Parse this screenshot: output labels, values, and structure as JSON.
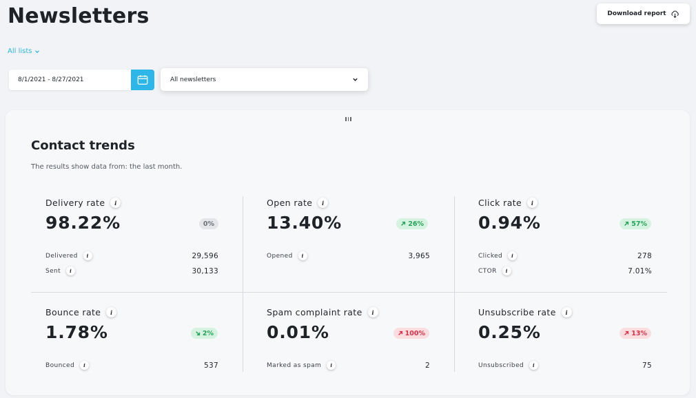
{
  "page": {
    "title": "Newsletters",
    "download_label": "Download report",
    "lists_label": "All lists"
  },
  "filters": {
    "date_range": "8/1/2021 - 8/27/2021",
    "newsletter_select": "All newsletters"
  },
  "section": {
    "title": "Contact trends",
    "subtitle": "The results show data from: the last month."
  },
  "colors": {
    "accent": "#2fb6e8",
    "positive": "#27a35a",
    "negative": "#d9334a",
    "neutral": "#6d7278"
  },
  "metrics": [
    {
      "label": "Delivery rate",
      "value": "98.22%",
      "badge": {
        "text": "0%",
        "trend": "neutral"
      },
      "rows": [
        {
          "label": "Delivered",
          "value": "29,596"
        },
        {
          "label": "Sent",
          "value": "30,133"
        }
      ]
    },
    {
      "label": "Open rate",
      "value": "13.40%",
      "badge": {
        "text": "26%",
        "trend": "up-good"
      },
      "rows": [
        {
          "label": "Opened",
          "value": "3,965"
        }
      ]
    },
    {
      "label": "Click rate",
      "value": "0.94%",
      "badge": {
        "text": "57%",
        "trend": "up-good"
      },
      "rows": [
        {
          "label": "Clicked",
          "value": "278"
        },
        {
          "label": "CTOR",
          "value": "7.01%"
        }
      ]
    },
    {
      "label": "Bounce rate",
      "value": "1.78%",
      "badge": {
        "text": "2%",
        "trend": "down-good"
      },
      "rows": [
        {
          "label": "Bounced",
          "value": "537"
        }
      ]
    },
    {
      "label": "Spam complaint rate",
      "value": "0.01%",
      "badge": {
        "text": "100%",
        "trend": "up-bad"
      },
      "rows": [
        {
          "label": "Marked as spam",
          "value": "2"
        }
      ]
    },
    {
      "label": "Unsubscribe rate",
      "value": "0.25%",
      "badge": {
        "text": "13%",
        "trend": "up-bad"
      },
      "rows": [
        {
          "label": "Unsubscribed",
          "value": "75"
        }
      ]
    }
  ]
}
